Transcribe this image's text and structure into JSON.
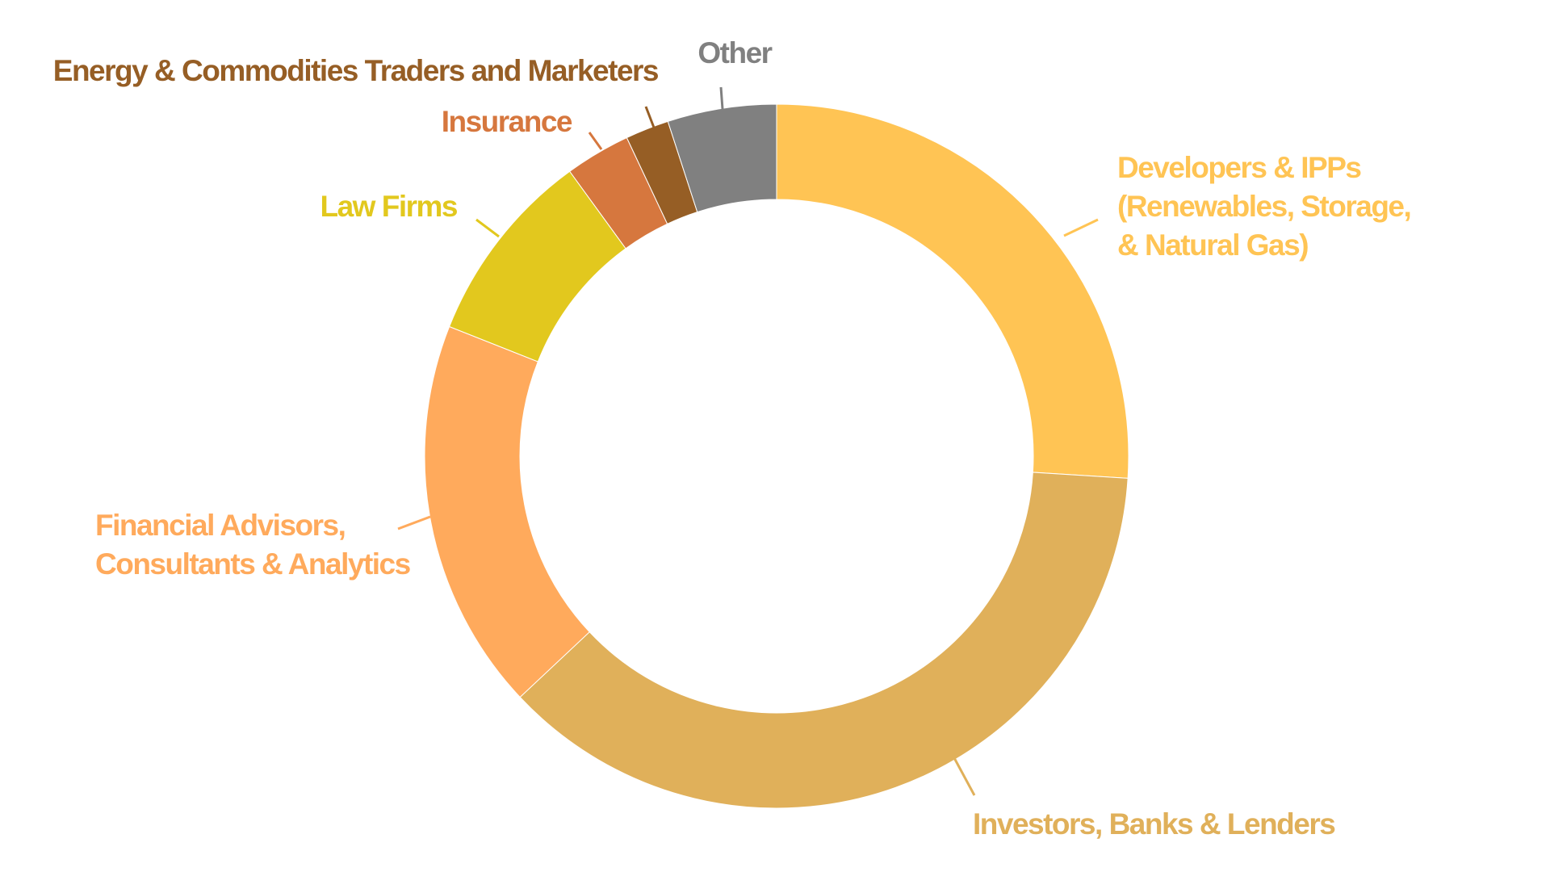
{
  "chart_data": {
    "type": "pie",
    "style": "donut",
    "title": "",
    "unit": "percent",
    "slices": [
      {
        "name": "Developers & IPPs (Renewables, Storage, & Natural Gas)",
        "label_lines": [
          "Developers & IPPs",
          "(Renewables, Storage,",
          "& Natural Gas)"
        ],
        "value": 26,
        "color": "#FFC454"
      },
      {
        "name": "Investors, Banks & Lenders",
        "label_lines": [
          "Investors, Banks & Lenders"
        ],
        "value": 37,
        "color": "#E0B05A"
      },
      {
        "name": "Financial Advisors, Consultants & Analytics",
        "label_lines": [
          "Financial Advisors,",
          "Consultants & Analytics"
        ],
        "value": 18,
        "color": "#FFAA5C"
      },
      {
        "name": "Law Firms",
        "label_lines": [
          "Law Firms"
        ],
        "value": 9,
        "color": "#E2C81E"
      },
      {
        "name": "Insurance",
        "label_lines": [
          "Insurance"
        ],
        "value": 3,
        "color": "#D6773E"
      },
      {
        "name": "Energy & Commodities Traders and Marketers",
        "label_lines": [
          "Energy & Commodities Traders and Marketers"
        ],
        "value": 2,
        "color": "#965E25"
      },
      {
        "name": "Other",
        "label_lines": [
          "Other"
        ],
        "value": 5,
        "color": "#808080"
      }
    ]
  }
}
